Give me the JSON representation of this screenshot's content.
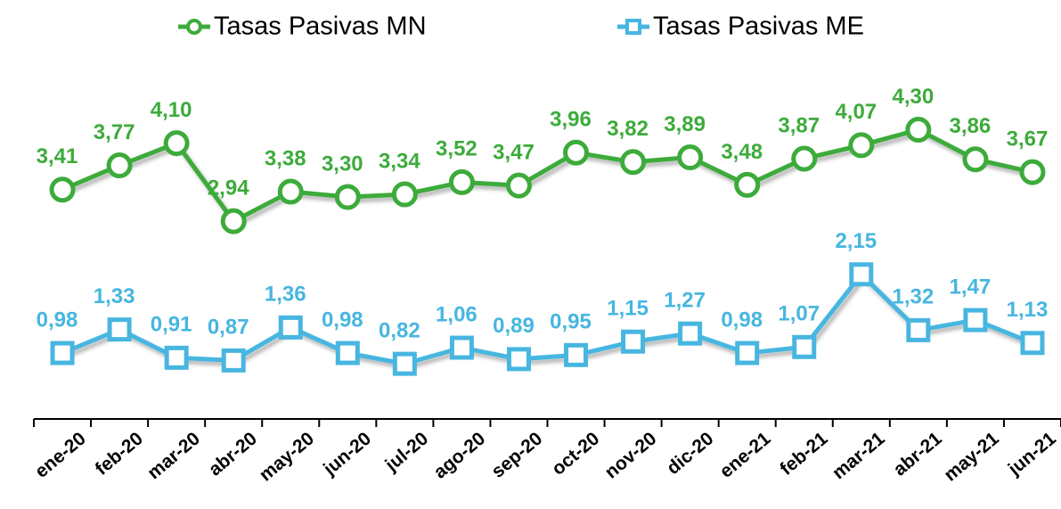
{
  "chart_data": {
    "type": "line",
    "categories": [
      "ene-20",
      "feb-20",
      "mar-20",
      "abr-20",
      "may-20",
      "jun-20",
      "jul-20",
      "ago-20",
      "sep-20",
      "oct-20",
      "nov-20",
      "dic-20",
      "ene-21",
      "feb-21",
      "mar-21",
      "abr-21",
      "may-21",
      "jun-21"
    ],
    "series": [
      {
        "name": "Tasas Pasivas MN",
        "color": "#3dab3b",
        "marker": "circle",
        "values": [
          3.41,
          3.77,
          4.1,
          2.94,
          3.38,
          3.3,
          3.34,
          3.52,
          3.47,
          3.96,
          3.82,
          3.89,
          3.48,
          3.87,
          4.07,
          4.3,
          3.86,
          3.67
        ],
        "value_labels": [
          "3,41",
          "3,77",
          "4,10",
          "2,94",
          "3,38",
          "3,30",
          "3,34",
          "3,52",
          "3,47",
          "3,96",
          "3,82",
          "3,89",
          "3,48",
          "3,87",
          "4,07",
          "4,30",
          "3,86",
          "3,67"
        ]
      },
      {
        "name": "Tasas Pasivas ME",
        "color": "#47b6e0",
        "marker": "square",
        "values": [
          0.98,
          1.33,
          0.91,
          0.87,
          1.36,
          0.98,
          0.82,
          1.06,
          0.89,
          0.95,
          1.15,
          1.27,
          0.98,
          1.07,
          2.15,
          1.32,
          1.47,
          1.13
        ],
        "value_labels": [
          "0,98",
          "1,33",
          "0,91",
          "0,87",
          "1,36",
          "0,98",
          "0,82",
          "1,06",
          "0,89",
          "0,95",
          "1,15",
          "1,27",
          "0,98",
          "1,07",
          "2,15",
          "1,32",
          "1,47",
          "1,13"
        ]
      }
    ],
    "ylim": [
      0,
      5.5
    ],
    "legend": "top"
  }
}
